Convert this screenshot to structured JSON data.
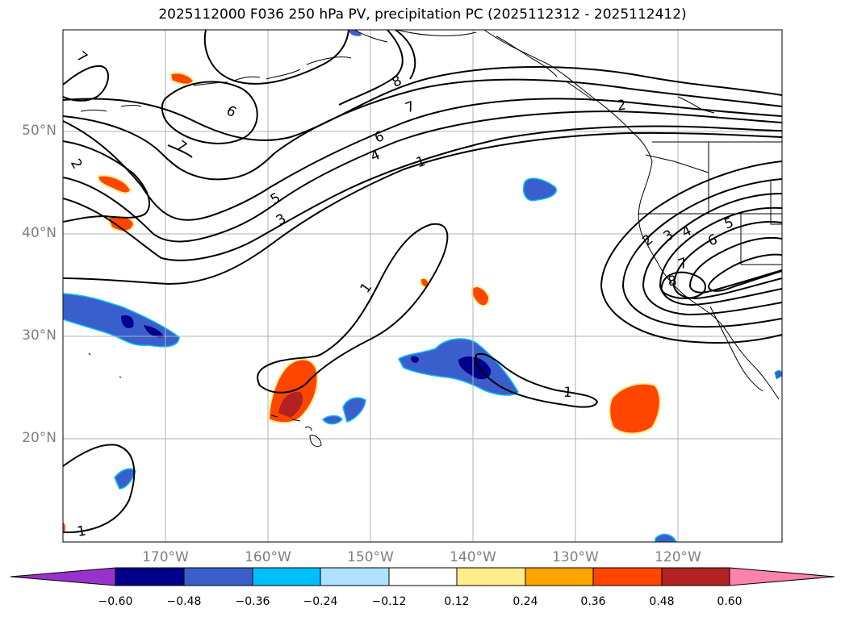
{
  "title": "2025112000 F036 250 hPa PV, precipitation PC (2025112312 - 2025112412)",
  "lat_labels": [
    "50°N",
    "40°N",
    "30°N",
    "20°N"
  ],
  "lon_labels": [
    "170°W",
    "160°W",
    "150°W",
    "140°W",
    "130°W",
    "120°W"
  ],
  "colorbar": {
    "tick_labels": [
      "−0.60",
      "−0.48",
      "−0.36",
      "−0.24",
      "−0.12",
      "0.12",
      "0.24",
      "0.36",
      "0.48",
      "0.60"
    ],
    "colors": [
      "#9932cc",
      "#00008b",
      "#3a5fcd",
      "#00bfff",
      "#b0e2ff",
      "#ffffff",
      "#ffec8b",
      "#ffa500",
      "#ff4500",
      "#b22222",
      "#ff82ab"
    ]
  },
  "contour_labels": [
    "7",
    "8",
    "7",
    "2",
    "6",
    "7",
    "2",
    "6",
    "4",
    "1",
    "5",
    "3",
    "1",
    "2",
    "3",
    "4",
    "5",
    "6",
    "7",
    "8",
    "1",
    "1"
  ],
  "colors": {
    "contour": "#000000",
    "grid": "#b0b0b0",
    "coast": "#000000"
  }
}
